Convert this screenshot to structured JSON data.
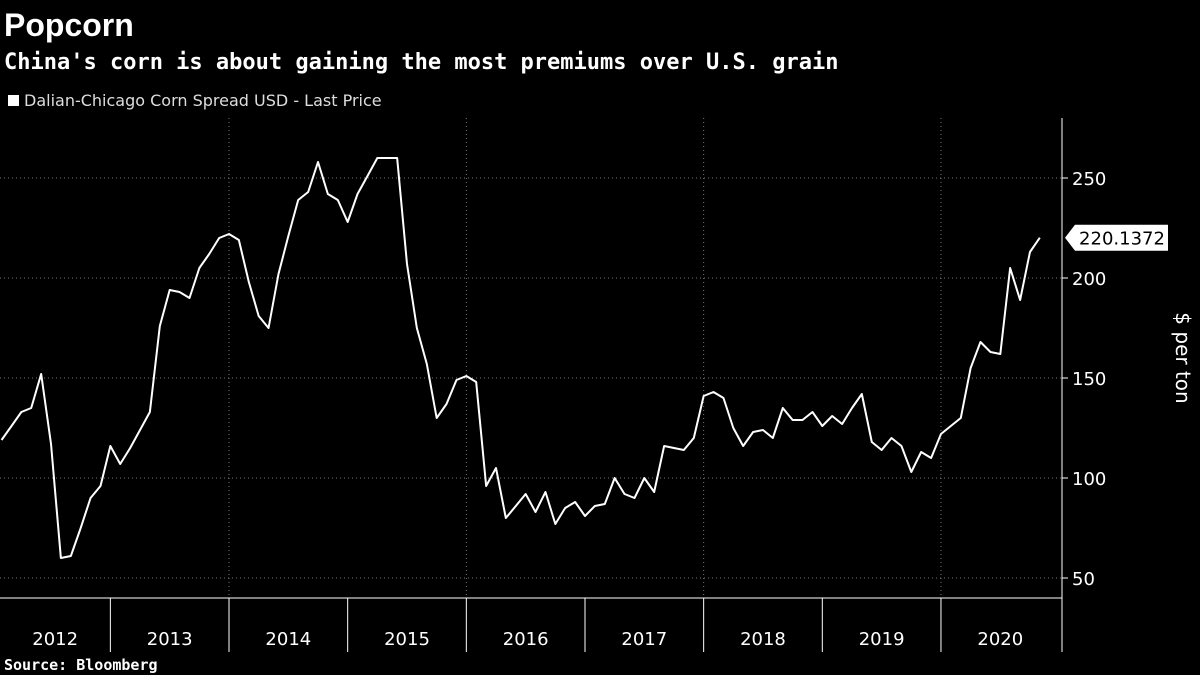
{
  "chart_data": {
    "type": "line",
    "title": "Popcorn",
    "subtitle": "China's corn is about gaining the most premiums over U.S. grain",
    "y_label": "$ per ton",
    "source": "Source: Bloomberg",
    "xlim": [
      2012.07,
      2021.02
    ],
    "xticks": [
      2012,
      2013,
      2014,
      2015,
      2016,
      2017,
      2018,
      2019,
      2020
    ],
    "ylim": [
      40,
      280
    ],
    "yticks": [
      50,
      100,
      150,
      200,
      250
    ],
    "grid": true,
    "series": [
      {
        "name": "Dalian-Chicago Corn Spread USD - Last Price",
        "color": "#ffffff",
        "x": [
          2012.083,
          2012.167,
          2012.25,
          2012.333,
          2012.417,
          2012.5,
          2012.583,
          2012.667,
          2012.75,
          2012.833,
          2012.917,
          2013,
          2013.083,
          2013.167,
          2013.25,
          2013.333,
          2013.417,
          2013.5,
          2013.583,
          2013.667,
          2013.75,
          2013.833,
          2013.917,
          2014,
          2014.083,
          2014.167,
          2014.25,
          2014.333,
          2014.417,
          2014.5,
          2014.583,
          2014.667,
          2014.75,
          2014.833,
          2014.917,
          2015,
          2015.083,
          2015.167,
          2015.25,
          2015.333,
          2015.417,
          2015.5,
          2015.583,
          2015.667,
          2015.75,
          2015.833,
          2015.917,
          2016,
          2016.083,
          2016.167,
          2016.25,
          2016.333,
          2016.417,
          2016.5,
          2016.583,
          2016.667,
          2016.75,
          2016.833,
          2016.917,
          2017,
          2017.083,
          2017.167,
          2017.25,
          2017.333,
          2017.417,
          2017.5,
          2017.583,
          2017.667,
          2017.75,
          2017.833,
          2017.917,
          2018,
          2018.083,
          2018.167,
          2018.25,
          2018.333,
          2018.417,
          2018.5,
          2018.583,
          2018.667,
          2018.75,
          2018.833,
          2018.917,
          2019,
          2019.083,
          2019.167,
          2019.25,
          2019.333,
          2019.417,
          2019.5,
          2019.583,
          2019.667,
          2019.75,
          2019.833,
          2019.917,
          2020,
          2020.083,
          2020.167,
          2020.25,
          2020.333,
          2020.417,
          2020.5,
          2020.583,
          2020.667,
          2020.75,
          2020.833
        ],
        "values": [
          119,
          126,
          133,
          135,
          152,
          117,
          60,
          61,
          75,
          90,
          96,
          116,
          107,
          115,
          124,
          133,
          176,
          194,
          193,
          190,
          205,
          212,
          220,
          222,
          219,
          198,
          181,
          175,
          202,
          221,
          239,
          243,
          258,
          242,
          239,
          228,
          242,
          251,
          260,
          260,
          260,
          207,
          175,
          157,
          130,
          137,
          149,
          151,
          148,
          96,
          105,
          80,
          86,
          92,
          83,
          93,
          77,
          85,
          88,
          81,
          86,
          87,
          100,
          92,
          90,
          100,
          93,
          116,
          115,
          114,
          120,
          141,
          143,
          140,
          125,
          116,
          123,
          124,
          120,
          135,
          129,
          129,
          133,
          126,
          131,
          127,
          135,
          142,
          118,
          114,
          120,
          116,
          103,
          113,
          110,
          122,
          126,
          130,
          155,
          168,
          163,
          162,
          205,
          189,
          213,
          220.1372
        ]
      }
    ]
  }
}
